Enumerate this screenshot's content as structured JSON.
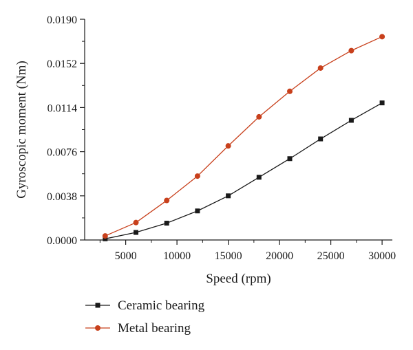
{
  "chart_data": {
    "type": "line",
    "xlabel": "Speed (rpm)",
    "ylabel": "Gyroscopic moment (Nm)",
    "xlim": [
      1000,
      31000
    ],
    "ylim": [
      0,
      0.019
    ],
    "x_ticks": [
      5000,
      10000,
      15000,
      20000,
      25000,
      30000
    ],
    "x_tick_labels": [
      "5000",
      "10000",
      "15000",
      "20000",
      "25000",
      "30000"
    ],
    "y_ticks": [
      0,
      0.0038,
      0.0076,
      0.0114,
      0.0152,
      0.019
    ],
    "y_tick_labels": [
      "0.0000",
      "0.0038",
      "0.0076",
      "0.0114",
      "0.0152",
      "0.0190"
    ],
    "grid": false,
    "legend_position": "bottom-left",
    "x": [
      3000,
      6000,
      9000,
      12000,
      15000,
      18000,
      21000,
      24000,
      27000,
      30000
    ],
    "series": [
      {
        "name": "Ceramic bearing",
        "marker": "square",
        "color": "#1a1a1a",
        "values": [
          0.0001,
          0.00065,
          0.00145,
          0.0025,
          0.0038,
          0.0054,
          0.007,
          0.0087,
          0.0103,
          0.0118
        ]
      },
      {
        "name": "Metal bearing",
        "marker": "circle",
        "color": "#c8401c",
        "values": [
          0.00035,
          0.0015,
          0.0034,
          0.0055,
          0.0081,
          0.0106,
          0.0128,
          0.0148,
          0.0163,
          0.0175
        ]
      }
    ]
  }
}
